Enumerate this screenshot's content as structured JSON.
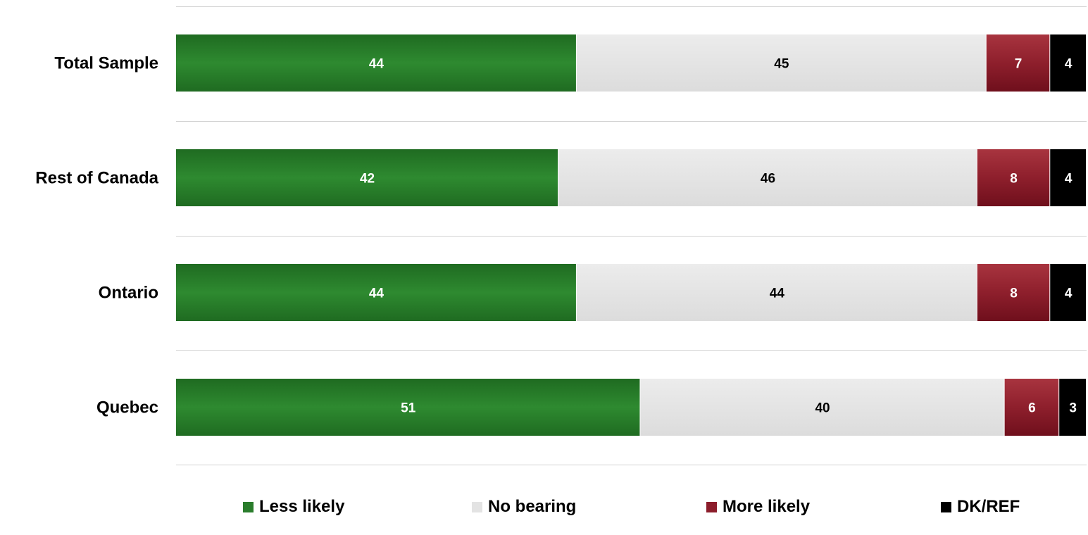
{
  "chart_data": {
    "type": "bar",
    "orientation": "horizontal",
    "stacked": true,
    "categories": [
      "Total Sample",
      "Rest of Canada",
      "Ontario",
      "Quebec"
    ],
    "series": [
      {
        "name": "Less likely",
        "color": "#2a7d2c",
        "values": [
          44,
          42,
          44,
          51
        ]
      },
      {
        "name": "No bearing",
        "color": "#e3e3e3",
        "values": [
          45,
          46,
          44,
          40
        ]
      },
      {
        "name": "More likely",
        "color": "#8c1d2b",
        "values": [
          7,
          8,
          8,
          6
        ]
      },
      {
        "name": "DK/REF",
        "color": "#000000",
        "values": [
          4,
          4,
          4,
          3
        ]
      }
    ],
    "xlim": [
      0,
      100
    ],
    "grid": "horizontal separators",
    "legend_position": "bottom"
  }
}
